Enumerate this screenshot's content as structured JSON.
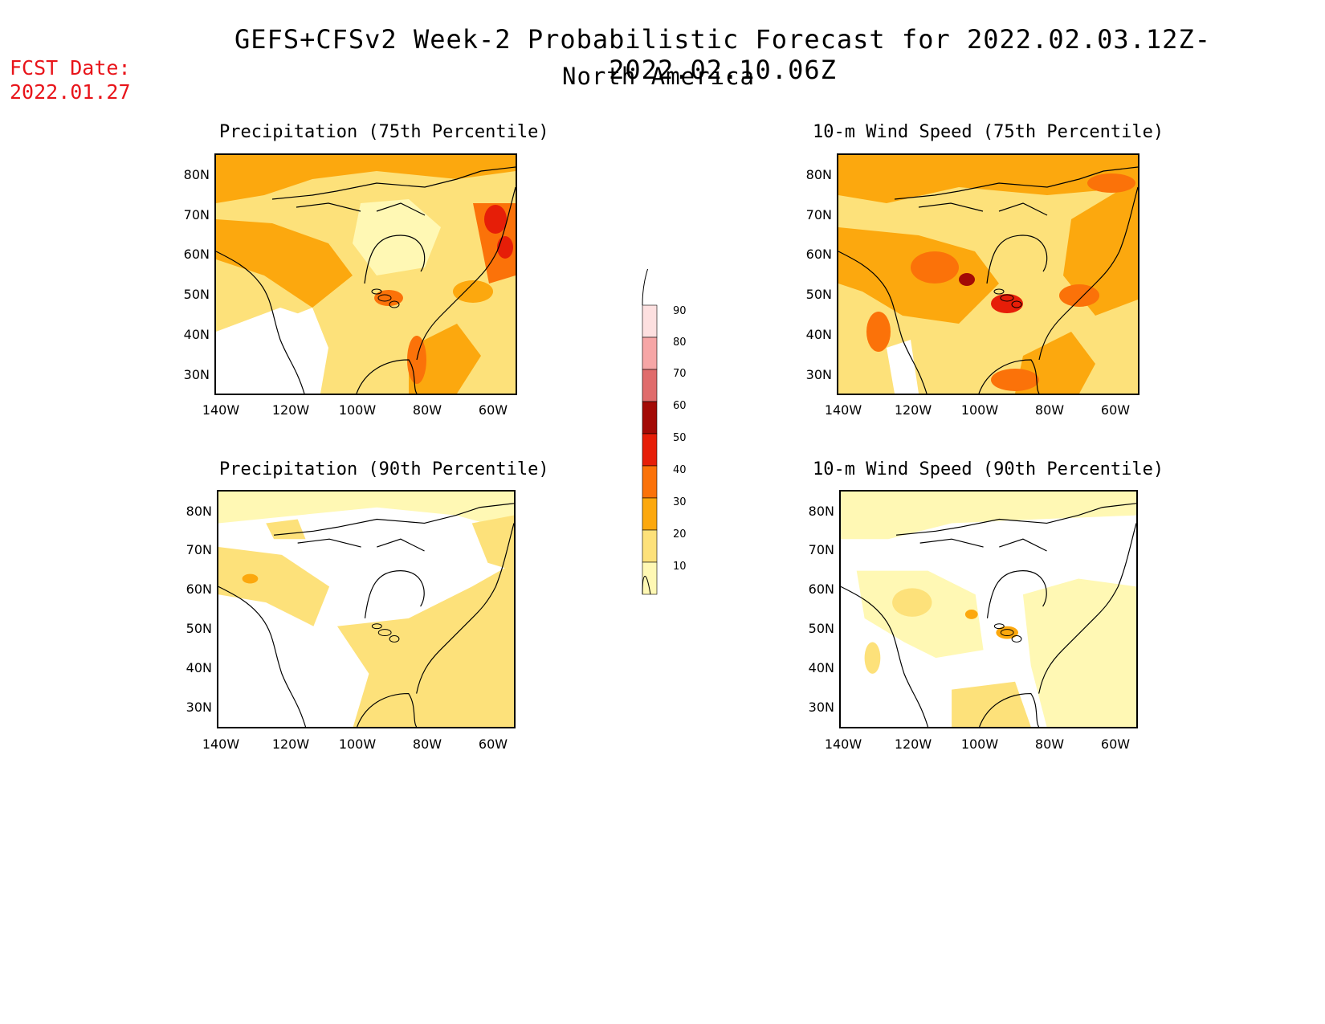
{
  "header": {
    "title": "GEFS+CFSv2 Week-2 Probabilistic Forecast for 2022.02.03.12Z-2022.02.10.06Z",
    "subtitle": "North America",
    "fcst_label": "FCST Date:",
    "fcst_date": "2022.01.27"
  },
  "panels": [
    {
      "title": "Precipitation (75th Percentile)"
    },
    {
      "title": "10-m Wind Speed (75th Percentile)"
    },
    {
      "title": "Precipitation (90th Percentile)"
    },
    {
      "title": "10-m Wind Speed (90th Percentile)"
    }
  ],
  "axes": {
    "lat_labels": [
      "80N",
      "70N",
      "60N",
      "50N",
      "40N",
      "30N"
    ],
    "lon_labels": [
      "140W",
      "120W",
      "100W",
      "80W",
      "60W"
    ]
  },
  "colorbar": {
    "levels": [
      "10",
      "20",
      "30",
      "40",
      "50",
      "60",
      "70",
      "80",
      "90"
    ],
    "colors": [
      "#fff8b4",
      "#fde17a",
      "#fca80e",
      "#fb7209",
      "#e61e08",
      "#a30a06",
      "#e06c6c",
      "#f6a6a6",
      "#fde0e0"
    ]
  }
}
